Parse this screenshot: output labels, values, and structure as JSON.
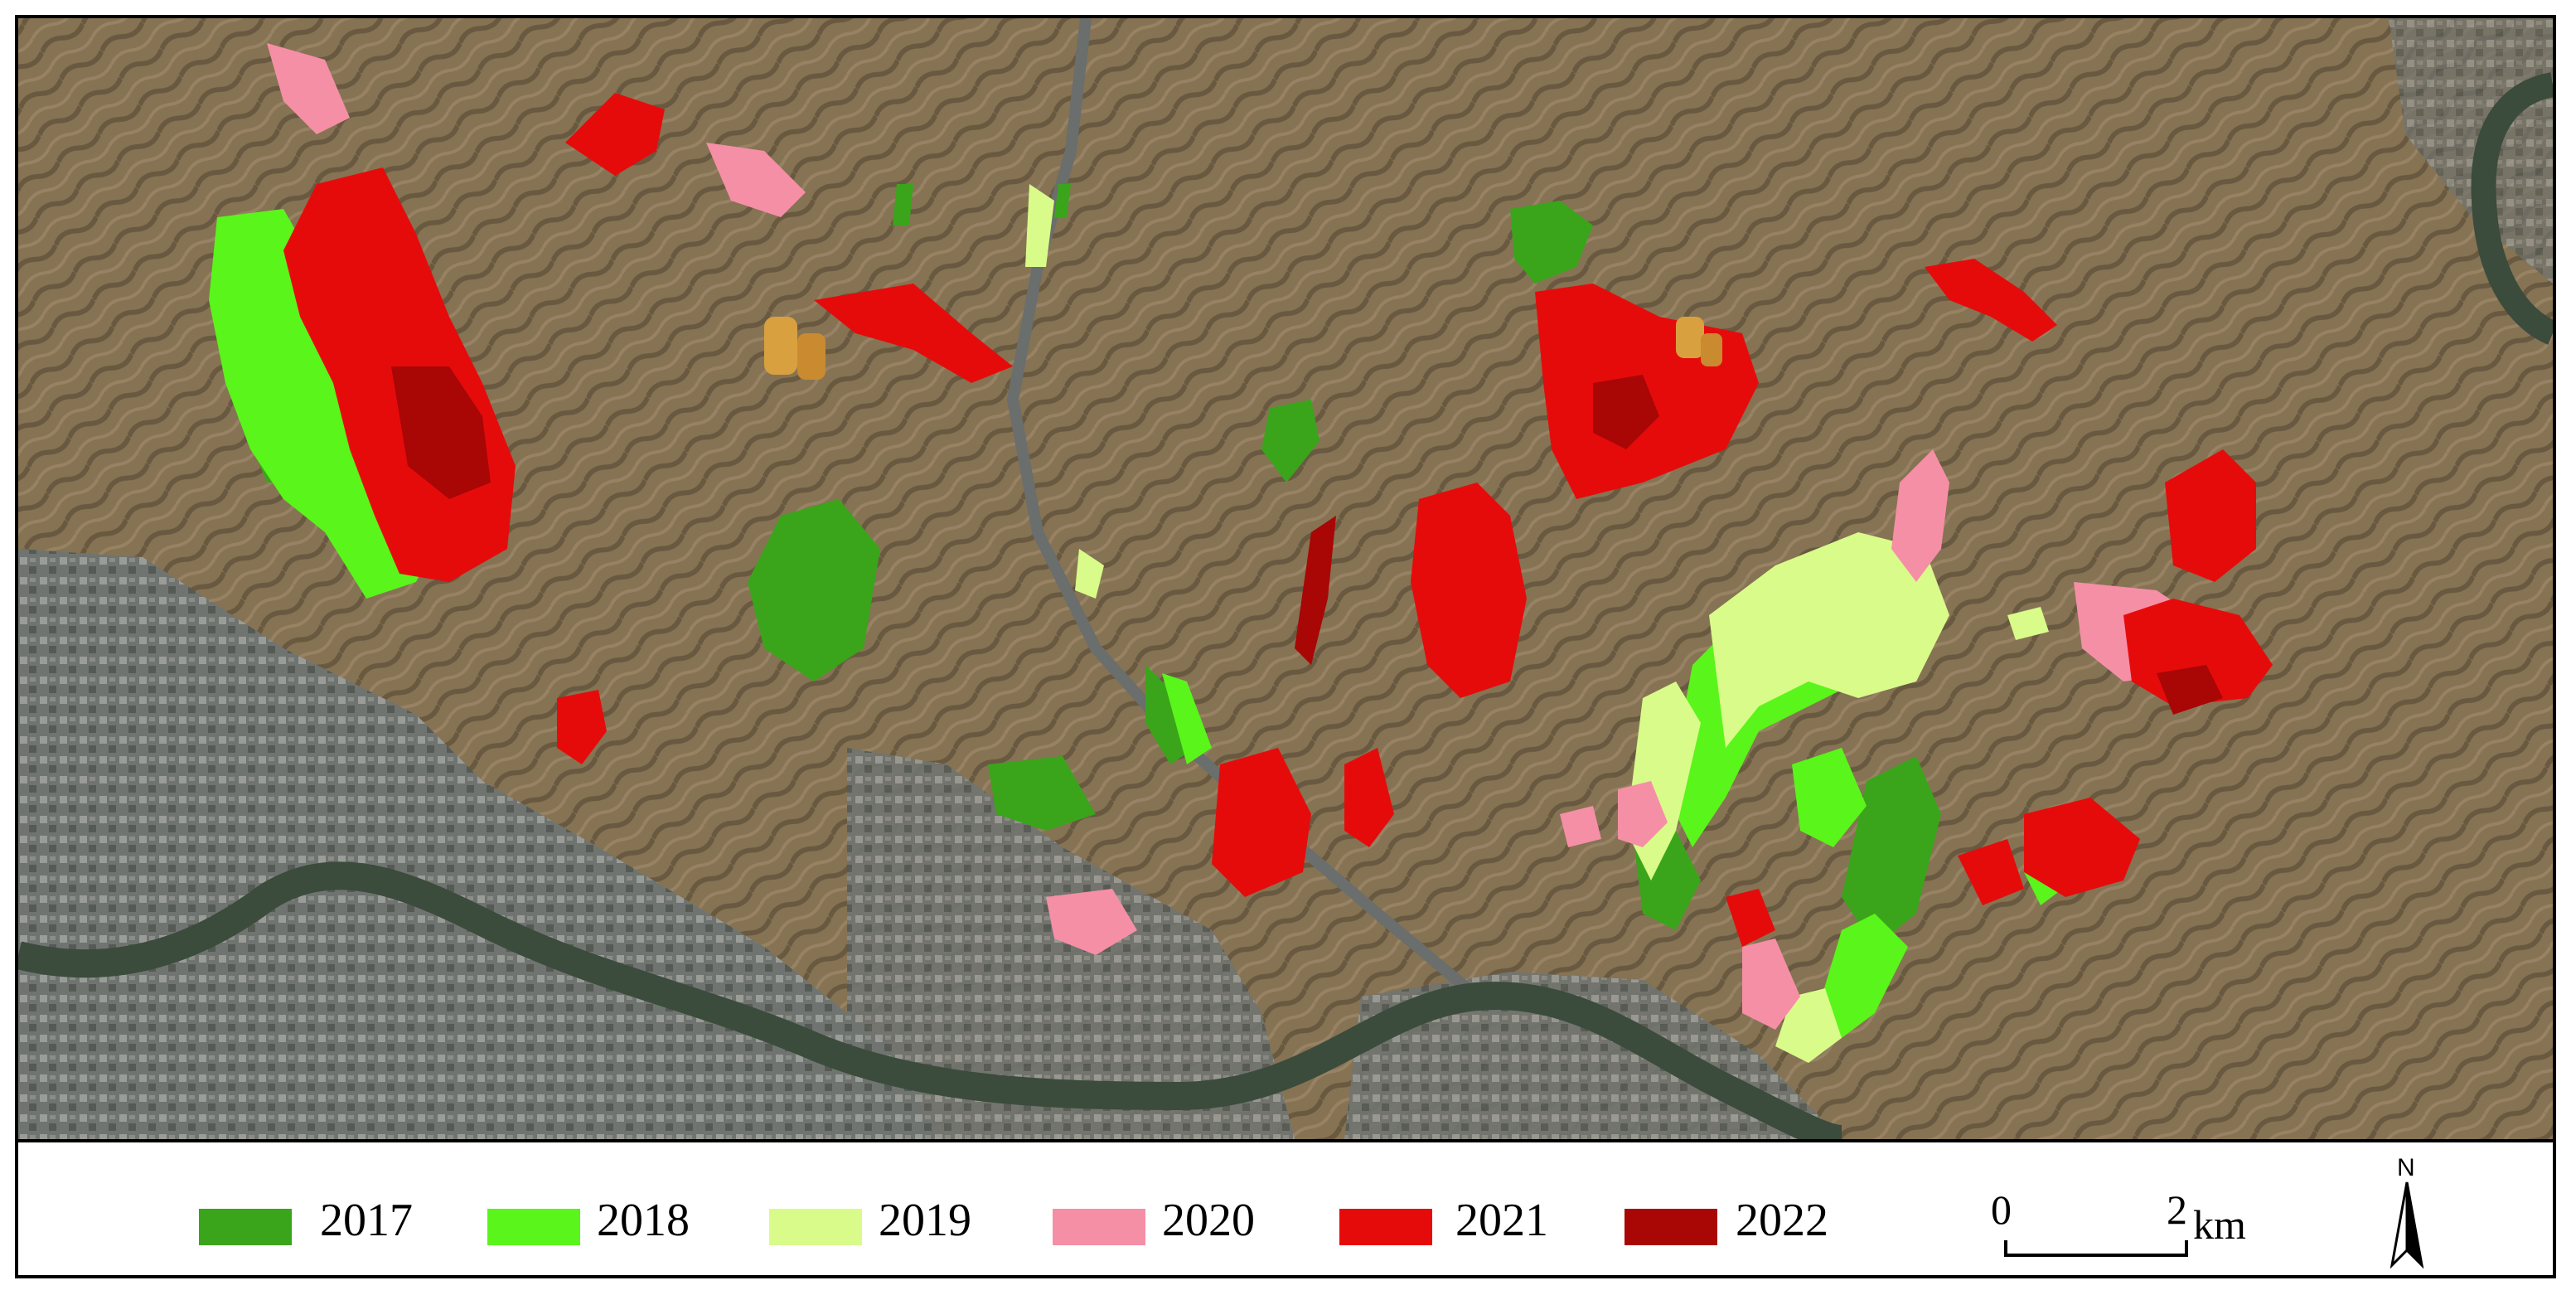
{
  "map": {
    "type": "satellite-overlay",
    "colors": {
      "terrain": "#8e7a5a",
      "terrain_dark": "#5e5240",
      "urban": "#6f7270",
      "river": "#3a4a3a"
    }
  },
  "legend": {
    "items": [
      {
        "label": "2017",
        "color": "#3aa51b"
      },
      {
        "label": "2018",
        "color": "#5af51a"
      },
      {
        "label": "2019",
        "color": "#d9fb8a"
      },
      {
        "label": "2020",
        "color": "#f58fa6"
      },
      {
        "label": "2021",
        "color": "#e60b0b"
      },
      {
        "label": "2022",
        "color": "#a90606"
      }
    ]
  },
  "scale_bar": {
    "start_label": "0",
    "end_label": "2",
    "unit": "km"
  },
  "north_arrow": {
    "label": "N",
    "icon": "north-arrow-icon"
  }
}
